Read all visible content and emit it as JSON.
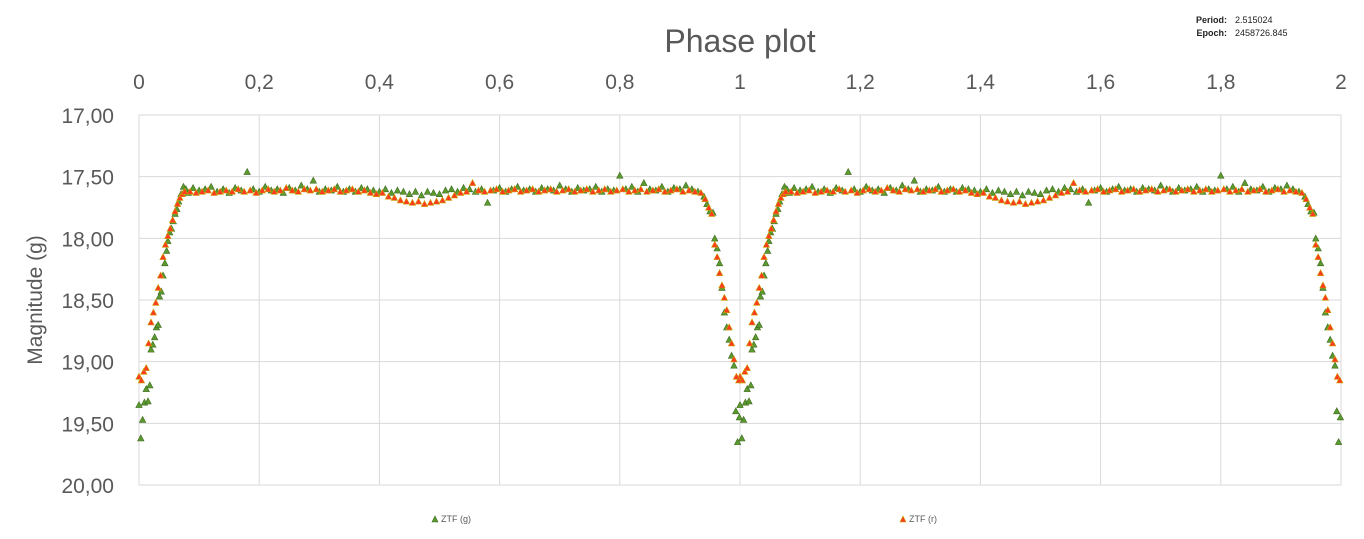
{
  "header": {
    "period_label": "Period:",
    "period_value": "2.515024",
    "epoch_label": "Epoch:",
    "epoch_value": "2458726.845"
  },
  "chart_data": {
    "type": "scatter",
    "title": "Phase plot",
    "xlabel": "",
    "ylabel": "Magnitude (g)",
    "xlim": [
      0,
      2
    ],
    "ylim": [
      17.0,
      20.0
    ],
    "y_inverted": true,
    "x_axis_position": "top",
    "x_ticks": [
      0,
      0.2,
      0.4,
      0.6,
      0.8,
      1.0,
      1.2,
      1.4,
      1.6,
      1.8,
      2.0
    ],
    "x_tick_labels": [
      "0",
      "0,2",
      "0,4",
      "0,6",
      "0,8",
      "1",
      "1,2",
      "1,4",
      "1,6",
      "1,8",
      "2"
    ],
    "y_ticks": [
      17.0,
      17.5,
      18.0,
      18.5,
      19.0,
      19.5,
      20.0
    ],
    "y_tick_labels": [
      "17,00",
      "17,50",
      "18,00",
      "18,50",
      "19,00",
      "19,50",
      "20,00"
    ],
    "grid": true,
    "legend_position": "bottom",
    "series": [
      {
        "name": "ZTF (g)",
        "color": "#5b9a2f",
        "marker": "triangle",
        "points": [
          [
            0.0,
            19.35
          ],
          [
            0.003,
            19.62
          ],
          [
            0.006,
            19.47
          ],
          [
            0.009,
            19.33
          ],
          [
            0.012,
            19.22
          ],
          [
            0.015,
            19.32
          ],
          [
            0.018,
            19.19
          ],
          [
            0.02,
            18.9
          ],
          [
            0.023,
            18.86
          ],
          [
            0.026,
            18.8
          ],
          [
            0.029,
            18.72
          ],
          [
            0.032,
            18.7
          ],
          [
            0.034,
            18.47
          ],
          [
            0.037,
            18.43
          ],
          [
            0.04,
            18.3
          ],
          [
            0.043,
            18.2
          ],
          [
            0.046,
            18.1
          ],
          [
            0.048,
            18.02
          ],
          [
            0.051,
            17.95
          ],
          [
            0.054,
            17.92
          ],
          [
            0.057,
            17.86
          ],
          [
            0.06,
            17.8
          ],
          [
            0.063,
            17.76
          ],
          [
            0.066,
            17.7
          ],
          [
            0.07,
            17.64
          ],
          [
            0.074,
            17.58
          ],
          [
            0.078,
            17.6
          ],
          [
            0.082,
            17.63
          ],
          [
            0.09,
            17.59
          ],
          [
            0.1,
            17.61
          ],
          [
            0.11,
            17.6
          ],
          [
            0.12,
            17.58
          ],
          [
            0.13,
            17.62
          ],
          [
            0.14,
            17.6
          ],
          [
            0.15,
            17.63
          ],
          [
            0.16,
            17.59
          ],
          [
            0.17,
            17.61
          ],
          [
            0.18,
            17.46
          ],
          [
            0.19,
            17.6
          ],
          [
            0.2,
            17.62
          ],
          [
            0.21,
            17.58
          ],
          [
            0.22,
            17.61
          ],
          [
            0.23,
            17.6
          ],
          [
            0.24,
            17.63
          ],
          [
            0.25,
            17.59
          ],
          [
            0.26,
            17.61
          ],
          [
            0.27,
            17.57
          ],
          [
            0.28,
            17.6
          ],
          [
            0.29,
            17.53
          ],
          [
            0.3,
            17.62
          ],
          [
            0.31,
            17.6
          ],
          [
            0.32,
            17.61
          ],
          [
            0.33,
            17.58
          ],
          [
            0.34,
            17.62
          ],
          [
            0.35,
            17.6
          ],
          [
            0.36,
            17.62
          ],
          [
            0.37,
            17.59
          ],
          [
            0.38,
            17.6
          ],
          [
            0.39,
            17.61
          ],
          [
            0.4,
            17.62
          ],
          [
            0.41,
            17.6
          ],
          [
            0.42,
            17.63
          ],
          [
            0.43,
            17.61
          ],
          [
            0.44,
            17.62
          ],
          [
            0.45,
            17.64
          ],
          [
            0.46,
            17.62
          ],
          [
            0.47,
            17.65
          ],
          [
            0.48,
            17.62
          ],
          [
            0.49,
            17.63
          ],
          [
            0.5,
            17.64
          ],
          [
            0.51,
            17.61
          ],
          [
            0.52,
            17.6
          ],
          [
            0.53,
            17.62
          ],
          [
            0.54,
            17.59
          ],
          [
            0.55,
            17.6
          ],
          [
            0.56,
            17.62
          ],
          [
            0.57,
            17.6
          ],
          [
            0.58,
            17.71
          ],
          [
            0.59,
            17.61
          ],
          [
            0.6,
            17.59
          ],
          [
            0.61,
            17.62
          ],
          [
            0.62,
            17.6
          ],
          [
            0.63,
            17.58
          ],
          [
            0.64,
            17.61
          ],
          [
            0.65,
            17.6
          ],
          [
            0.66,
            17.62
          ],
          [
            0.67,
            17.59
          ],
          [
            0.68,
            17.6
          ],
          [
            0.69,
            17.61
          ],
          [
            0.7,
            17.57
          ],
          [
            0.71,
            17.6
          ],
          [
            0.72,
            17.62
          ],
          [
            0.73,
            17.59
          ],
          [
            0.74,
            17.61
          ],
          [
            0.75,
            17.6
          ],
          [
            0.76,
            17.58
          ],
          [
            0.77,
            17.62
          ],
          [
            0.78,
            17.6
          ],
          [
            0.79,
            17.61
          ],
          [
            0.8,
            17.49
          ],
          [
            0.81,
            17.6
          ],
          [
            0.82,
            17.58
          ],
          [
            0.83,
            17.62
          ],
          [
            0.84,
            17.55
          ],
          [
            0.85,
            17.6
          ],
          [
            0.86,
            17.61
          ],
          [
            0.87,
            17.58
          ],
          [
            0.88,
            17.62
          ],
          [
            0.89,
            17.59
          ],
          [
            0.9,
            17.6
          ],
          [
            0.91,
            17.57
          ],
          [
            0.92,
            17.6
          ],
          [
            0.93,
            17.62
          ],
          [
            0.94,
            17.66
          ],
          [
            0.945,
            17.72
          ],
          [
            0.95,
            17.78
          ],
          [
            0.955,
            17.79
          ],
          [
            0.958,
            18.0
          ],
          [
            0.962,
            18.08
          ],
          [
            0.966,
            18.2
          ],
          [
            0.97,
            18.4
          ],
          [
            0.974,
            18.6
          ],
          [
            0.978,
            18.72
          ],
          [
            0.982,
            18.82
          ],
          [
            0.986,
            18.95
          ],
          [
            0.99,
            19.03
          ],
          [
            0.993,
            19.4
          ],
          [
            0.996,
            19.65
          ],
          [
            0.999,
            19.45
          ]
        ]
      },
      {
        "name": "ZTF (r)",
        "color": "#ff3b1f",
        "marker": "triangle",
        "points": [
          [
            0.0,
            19.12
          ],
          [
            0.004,
            19.15
          ],
          [
            0.008,
            19.08
          ],
          [
            0.012,
            19.05
          ],
          [
            0.016,
            18.85
          ],
          [
            0.02,
            18.68
          ],
          [
            0.024,
            18.6
          ],
          [
            0.028,
            18.52
          ],
          [
            0.032,
            18.4
          ],
          [
            0.036,
            18.3
          ],
          [
            0.04,
            18.15
          ],
          [
            0.044,
            18.05
          ],
          [
            0.048,
            17.98
          ],
          [
            0.052,
            17.92
          ],
          [
            0.056,
            17.85
          ],
          [
            0.06,
            17.78
          ],
          [
            0.064,
            17.72
          ],
          [
            0.068,
            17.67
          ],
          [
            0.072,
            17.64
          ],
          [
            0.076,
            17.62
          ],
          [
            0.085,
            17.62
          ],
          [
            0.095,
            17.63
          ],
          [
            0.105,
            17.62
          ],
          [
            0.115,
            17.61
          ],
          [
            0.125,
            17.63
          ],
          [
            0.135,
            17.62
          ],
          [
            0.145,
            17.61
          ],
          [
            0.155,
            17.62
          ],
          [
            0.165,
            17.6
          ],
          [
            0.175,
            17.62
          ],
          [
            0.185,
            17.61
          ],
          [
            0.195,
            17.63
          ],
          [
            0.205,
            17.61
          ],
          [
            0.215,
            17.6
          ],
          [
            0.225,
            17.62
          ],
          [
            0.235,
            17.61
          ],
          [
            0.245,
            17.59
          ],
          [
            0.255,
            17.61
          ],
          [
            0.265,
            17.62
          ],
          [
            0.275,
            17.6
          ],
          [
            0.285,
            17.61
          ],
          [
            0.295,
            17.6
          ],
          [
            0.305,
            17.62
          ],
          [
            0.315,
            17.61
          ],
          [
            0.325,
            17.6
          ],
          [
            0.335,
            17.62
          ],
          [
            0.345,
            17.61
          ],
          [
            0.355,
            17.6
          ],
          [
            0.365,
            17.62
          ],
          [
            0.375,
            17.61
          ],
          [
            0.385,
            17.63
          ],
          [
            0.395,
            17.64
          ],
          [
            0.405,
            17.63
          ],
          [
            0.415,
            17.66
          ],
          [
            0.425,
            17.67
          ],
          [
            0.435,
            17.69
          ],
          [
            0.445,
            17.7
          ],
          [
            0.455,
            17.71
          ],
          [
            0.465,
            17.7
          ],
          [
            0.475,
            17.72
          ],
          [
            0.485,
            17.71
          ],
          [
            0.495,
            17.7
          ],
          [
            0.505,
            17.69
          ],
          [
            0.515,
            17.67
          ],
          [
            0.525,
            17.65
          ],
          [
            0.535,
            17.63
          ],
          [
            0.545,
            17.62
          ],
          [
            0.555,
            17.55
          ],
          [
            0.565,
            17.61
          ],
          [
            0.575,
            17.62
          ],
          [
            0.585,
            17.61
          ],
          [
            0.595,
            17.6
          ],
          [
            0.605,
            17.62
          ],
          [
            0.615,
            17.61
          ],
          [
            0.625,
            17.6
          ],
          [
            0.635,
            17.62
          ],
          [
            0.645,
            17.61
          ],
          [
            0.655,
            17.6
          ],
          [
            0.665,
            17.62
          ],
          [
            0.675,
            17.61
          ],
          [
            0.685,
            17.6
          ],
          [
            0.695,
            17.62
          ],
          [
            0.705,
            17.61
          ],
          [
            0.715,
            17.6
          ],
          [
            0.725,
            17.62
          ],
          [
            0.735,
            17.61
          ],
          [
            0.745,
            17.6
          ],
          [
            0.755,
            17.62
          ],
          [
            0.765,
            17.61
          ],
          [
            0.775,
            17.6
          ],
          [
            0.785,
            17.62
          ],
          [
            0.795,
            17.61
          ],
          [
            0.805,
            17.6
          ],
          [
            0.815,
            17.62
          ],
          [
            0.825,
            17.61
          ],
          [
            0.835,
            17.6
          ],
          [
            0.845,
            17.62
          ],
          [
            0.855,
            17.61
          ],
          [
            0.865,
            17.6
          ],
          [
            0.875,
            17.62
          ],
          [
            0.885,
            17.61
          ],
          [
            0.895,
            17.6
          ],
          [
            0.905,
            17.62
          ],
          [
            0.915,
            17.61
          ],
          [
            0.925,
            17.62
          ],
          [
            0.935,
            17.63
          ],
          [
            0.942,
            17.68
          ],
          [
            0.948,
            17.75
          ],
          [
            0.953,
            17.8
          ],
          [
            0.958,
            18.05
          ],
          [
            0.962,
            18.15
          ],
          [
            0.966,
            18.28
          ],
          [
            0.97,
            18.38
          ],
          [
            0.974,
            18.48
          ],
          [
            0.978,
            18.58
          ],
          [
            0.982,
            18.72
          ],
          [
            0.986,
            18.85
          ],
          [
            0.99,
            18.98
          ],
          [
            0.994,
            19.12
          ],
          [
            0.998,
            19.15
          ]
        ]
      }
    ]
  }
}
